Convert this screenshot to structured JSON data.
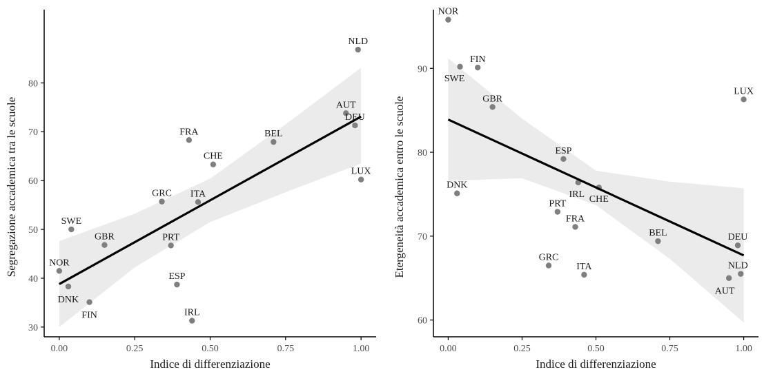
{
  "colors": {
    "point": "#7f7f7f",
    "point_light": "#9a9a9a",
    "fit_line": "#000000",
    "confidence_band": "#ebebeb",
    "axis": "#000000"
  },
  "chart_data": [
    {
      "type": "scatter",
      "xlabel": "Indice di differenziazione",
      "ylabel": "Segregazione accademica tra le scuole",
      "xlim": [
        -0.05,
        1.05
      ],
      "ylim": [
        28,
        95
      ],
      "x_ticks": [
        0.0,
        0.25,
        0.5,
        0.75,
        1.0
      ],
      "x_tick_labels": [
        "0.00",
        "0.25",
        "0.50",
        "0.75",
        "1.00"
      ],
      "y_ticks": [
        30,
        40,
        50,
        60,
        70,
        80
      ],
      "y_tick_labels": [
        "30",
        "40",
        "50",
        "60",
        "70",
        "80"
      ],
      "grid": false,
      "points": [
        {
          "label": "NLD",
          "x": 0.99,
          "y": 86.8
        },
        {
          "label": "AUT",
          "x": 0.95,
          "y": 73.8
        },
        {
          "label": "DEU",
          "x": 0.98,
          "y": 71.3
        },
        {
          "label": "LUX",
          "x": 1.0,
          "y": 60.2
        },
        {
          "label": "BEL",
          "x": 0.71,
          "y": 67.9
        },
        {
          "label": "FRA",
          "x": 0.43,
          "y": 68.3
        },
        {
          "label": "CHE",
          "x": 0.51,
          "y": 63.3
        },
        {
          "label": "GRC",
          "x": 0.34,
          "y": 55.7
        },
        {
          "label": "ITA",
          "x": 0.46,
          "y": 55.6
        },
        {
          "label": "SWE",
          "x": 0.04,
          "y": 50.0
        },
        {
          "label": "GBR",
          "x": 0.15,
          "y": 46.8
        },
        {
          "label": "PRT",
          "x": 0.37,
          "y": 46.7
        },
        {
          "label": "NOR",
          "x": 0.0,
          "y": 41.5
        },
        {
          "label": "ESP",
          "x": 0.39,
          "y": 38.7
        },
        {
          "label": "DNK",
          "x": 0.03,
          "y": 38.3
        },
        {
          "label": "FIN",
          "x": 0.1,
          "y": 35.1
        },
        {
          "label": "IRL",
          "x": 0.44,
          "y": 31.3
        }
      ],
      "fit": {
        "x": [
          0.0,
          1.0
        ],
        "y": [
          38.8,
          73.1
        ]
      },
      "band": {
        "x": [
          0.0,
          0.25,
          0.5,
          0.75,
          1.0
        ],
        "lower": [
          30.0,
          42.2,
          51.5,
          57.6,
          63.5
        ],
        "upper": [
          47.6,
          53.2,
          60.4,
          71.5,
          83.1
        ]
      }
    },
    {
      "type": "scatter",
      "xlabel": "Indice di differenziazione",
      "ylabel": "Etergeneità accademica entro le scuole",
      "xlim": [
        -0.05,
        1.05
      ],
      "ylim": [
        58,
        97
      ],
      "x_ticks": [
        0.0,
        0.25,
        0.5,
        0.75,
        1.0
      ],
      "x_tick_labels": [
        "0.00",
        "0.25",
        "0.50",
        "0.75",
        "1.00"
      ],
      "y_ticks": [
        60,
        70,
        80,
        90
      ],
      "y_tick_labels": [
        "60",
        "70",
        "80",
        "90"
      ],
      "grid": false,
      "points": [
        {
          "label": "NOR",
          "x": 0.0,
          "y": 95.8
        },
        {
          "label": "SWE",
          "x": 0.04,
          "y": 90.2
        },
        {
          "label": "FIN",
          "x": 0.1,
          "y": 90.1
        },
        {
          "label": "GBR",
          "x": 0.15,
          "y": 85.4
        },
        {
          "label": "LUX",
          "x": 1.0,
          "y": 86.3
        },
        {
          "label": "ESP",
          "x": 0.39,
          "y": 79.2
        },
        {
          "label": "IRL",
          "x": 0.44,
          "y": 76.4
        },
        {
          "label": "CHE",
          "x": 0.51,
          "y": 75.8
        },
        {
          "label": "DNK",
          "x": 0.03,
          "y": 75.1
        },
        {
          "label": "PRT",
          "x": 0.37,
          "y": 72.9
        },
        {
          "label": "FRA",
          "x": 0.43,
          "y": 71.1
        },
        {
          "label": "BEL",
          "x": 0.71,
          "y": 69.4
        },
        {
          "label": "DEU",
          "x": 0.98,
          "y": 68.9
        },
        {
          "label": "GRC",
          "x": 0.34,
          "y": 66.5
        },
        {
          "label": "ITA",
          "x": 0.46,
          "y": 65.4
        },
        {
          "label": "NLD",
          "x": 0.99,
          "y": 65.5
        },
        {
          "label": "AUT",
          "x": 0.95,
          "y": 65.0
        }
      ],
      "fit": {
        "x": [
          0.0,
          1.0
        ],
        "y": [
          83.9,
          67.7
        ]
      },
      "band": {
        "x": [
          0.0,
          0.25,
          0.5,
          0.75,
          1.0
        ],
        "lower": [
          76.6,
          76.9,
          73.7,
          67.3,
          59.7
        ],
        "upper": [
          91.2,
          84.0,
          77.8,
          76.5,
          75.7
        ]
      }
    }
  ]
}
